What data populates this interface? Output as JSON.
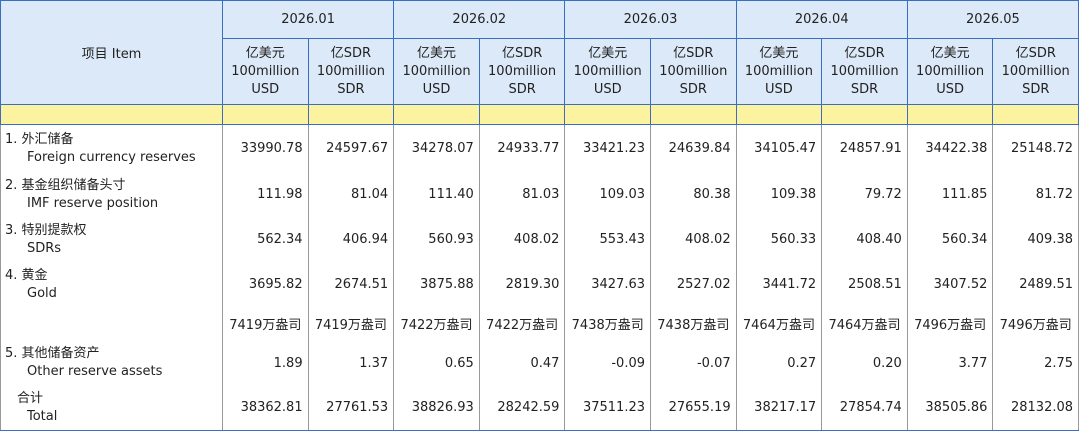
{
  "header": {
    "item": "项目 Item",
    "months": [
      "2026.01",
      "2026.02",
      "2026.03",
      "2026.04",
      "2026.05"
    ],
    "units": [
      {
        "cn": "亿美元",
        "en": "100million",
        "code": "USD"
      },
      {
        "cn": "亿SDR",
        "en": "100million",
        "code": "SDR"
      },
      {
        "cn": "亿美元",
        "en": "100million",
        "code": "USD"
      },
      {
        "cn": "亿SDR",
        "en": "100million",
        "code": "SDR"
      },
      {
        "cn": "亿美元",
        "en": "100million",
        "code": "USD"
      },
      {
        "cn": "亿SDR",
        "en": "100million",
        "code": "SDR"
      },
      {
        "cn": "亿美元",
        "en": "100million",
        "code": "USD"
      },
      {
        "cn": "亿SDR",
        "en": "100million",
        "code": "SDR"
      },
      {
        "cn": "亿美元",
        "en": "100million",
        "code": "USD"
      },
      {
        "cn": "亿SDR",
        "en": "100million",
        "code": "SDR"
      }
    ]
  },
  "rows": [
    {
      "label_cn": "1.  外汇储备",
      "label_en": "Foreign currency reserves",
      "values": [
        "33990.78",
        "24597.67",
        "34278.07",
        "24933.77",
        "33421.23",
        "24639.84",
        "34105.47",
        "24857.91",
        "34422.38",
        "25148.72"
      ]
    },
    {
      "label_cn": "2.  基金组织储备头寸",
      "label_en": "IMF reserve position",
      "values": [
        "111.98",
        "81.04",
        "111.40",
        "81.03",
        "109.03",
        "80.38",
        "109.38",
        "79.72",
        "111.85",
        "81.72"
      ]
    },
    {
      "label_cn": "3.  特别提款权",
      "label_en": "SDRs",
      "values": [
        "562.34",
        "406.94",
        "560.93",
        "408.02",
        "553.43",
        "408.02",
        "560.33",
        "408.40",
        "560.34",
        "409.38"
      ]
    },
    {
      "label_cn": "4.  黄金",
      "label_en": "Gold",
      "values": [
        "3695.82",
        "2674.51",
        "3875.88",
        "2819.30",
        "3427.63",
        "2527.02",
        "3441.72",
        "2508.51",
        "3407.52",
        "2489.51"
      ]
    },
    {
      "values": [
        "7419万盎司",
        "7419万盎司",
        "7422万盎司",
        "7422万盎司",
        "7438万盎司",
        "7438万盎司",
        "7464万盎司",
        "7464万盎司",
        "7496万盎司",
        "7496万盎司"
      ]
    },
    {
      "label_cn": "5.  其他储备资产",
      "label_en": "Other reserve assets",
      "values": [
        "1.89",
        "1.37",
        "0.65",
        "0.47",
        "-0.09",
        "-0.07",
        "0.27",
        "0.20",
        "3.77",
        "2.75"
      ]
    },
    {
      "label_cn": "合计",
      "label_en": "Total",
      "values": [
        "38362.81",
        "27761.53",
        "38826.93",
        "28242.59",
        "37511.23",
        "27655.19",
        "38217.17",
        "27854.74",
        "38505.86",
        "28132.08"
      ],
      "total": true
    }
  ]
}
